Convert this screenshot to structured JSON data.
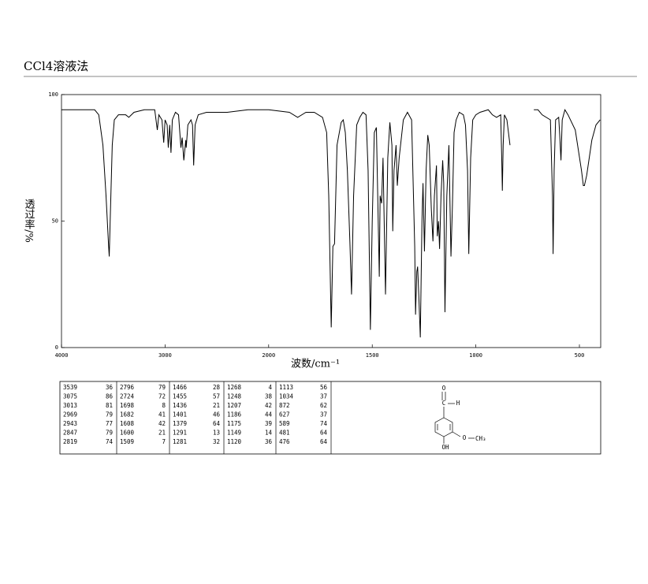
{
  "chart_data": {
    "type": "line",
    "title": "CCl4溶液法",
    "x_label": "波数/cm⁻¹",
    "y_label": "透过率/%",
    "xlim": [
      4000,
      400
    ],
    "xticks": [
      4000,
      3000,
      2000,
      1500,
      1000,
      500
    ],
    "ylim": [
      0,
      100
    ],
    "yticks": [
      0,
      50,
      100
    ],
    "x": [
      4000,
      3800,
      3680,
      3640,
      3600,
      3570,
      3545,
      3539,
      3530,
      3510,
      3490,
      3450,
      3380,
      3350,
      3300,
      3200,
      3100,
      3075,
      3060,
      3030,
      3013,
      3000,
      2980,
      2969,
      2955,
      2943,
      2930,
      2900,
      2870,
      2847,
      2835,
      2819,
      2800,
      2796,
      2780,
      2750,
      2735,
      2724,
      2710,
      2680,
      2600,
      2400,
      2200,
      2000,
      1900,
      1860,
      1820,
      1780,
      1740,
      1720,
      1710,
      1698,
      1690,
      1682,
      1670,
      1650,
      1640,
      1630,
      1620,
      1608,
      1600,
      1590,
      1575,
      1560,
      1545,
      1530,
      1520,
      1509,
      1500,
      1490,
      1480,
      1466,
      1462,
      1455,
      1448,
      1436,
      1425,
      1415,
      1405,
      1401,
      1395,
      1385,
      1379,
      1370,
      1350,
      1330,
      1310,
      1295,
      1291,
      1285,
      1281,
      1275,
      1268,
      1260,
      1255,
      1248,
      1240,
      1232,
      1225,
      1215,
      1207,
      1200,
      1190,
      1186,
      1180,
      1175,
      1168,
      1160,
      1155,
      1149,
      1140,
      1130,
      1120,
      1113,
      1105,
      1095,
      1080,
      1060,
      1050,
      1040,
      1034,
      1025,
      1015,
      1000,
      980,
      940,
      920,
      900,
      880,
      875,
      872,
      868,
      862,
      850,
      835,
      780,
      720,
      700,
      680,
      640,
      630,
      627,
      622,
      615,
      600,
      595,
      589,
      583,
      570,
      555,
      520,
      490,
      481,
      476,
      465,
      440,
      420,
      400
    ],
    "series": [
      {
        "color": "#000000",
        "values": [
          94,
          94,
          94,
          92,
          80,
          60,
          40,
          36,
          50,
          80,
          90,
          92,
          92,
          91,
          93,
          94,
          94,
          86,
          92,
          90,
          81,
          90,
          88,
          79,
          88,
          77,
          90,
          93,
          92,
          79,
          83,
          74,
          82,
          79,
          88,
          90,
          88,
          72,
          88,
          92,
          93,
          93,
          94,
          94,
          93,
          91,
          93,
          93,
          91,
          85,
          60,
          8,
          40,
          41,
          80,
          89,
          90,
          85,
          70,
          42,
          21,
          60,
          88,
          91,
          93,
          92,
          70,
          7,
          50,
          85,
          87,
          28,
          60,
          57,
          75,
          21,
          75,
          89,
          80,
          46,
          70,
          80,
          64,
          75,
          90,
          93,
          90,
          40,
          13,
          30,
          32,
          20,
          4,
          50,
          65,
          38,
          70,
          84,
          80,
          55,
          42,
          60,
          72,
          44,
          50,
          39,
          60,
          74,
          65,
          14,
          60,
          80,
          36,
          56,
          85,
          90,
          93,
          92,
          88,
          70,
          37,
          75,
          90,
          92,
          93,
          94,
          92,
          91,
          92,
          75,
          62,
          80,
          92,
          90,
          80,
          null,
          94,
          94,
          92,
          90,
          60,
          37,
          70,
          90,
          91,
          84,
          74,
          90,
          94,
          92,
          86,
          70,
          64,
          64,
          68,
          82,
          88,
          90
        ]
      }
    ]
  },
  "peak_table": {
    "rows": [
      [
        3539,
        36,
        2796,
        79,
        1466,
        28,
        1268,
        4,
        1113,
        56
      ],
      [
        3075,
        86,
        2724,
        72,
        1455,
        57,
        1248,
        38,
        1034,
        37
      ],
      [
        3013,
        81,
        1698,
        8,
        1436,
        21,
        1207,
        42,
        872,
        62
      ],
      [
        2969,
        79,
        1682,
        41,
        1401,
        46,
        1186,
        44,
        627,
        37
      ],
      [
        2943,
        77,
        1608,
        42,
        1379,
        64,
        1175,
        39,
        589,
        74
      ],
      [
        2847,
        79,
        1600,
        21,
        1291,
        13,
        1149,
        14,
        481,
        64
      ],
      [
        2819,
        74,
        1509,
        7,
        1281,
        32,
        1120,
        36,
        476,
        64
      ]
    ]
  },
  "structure": {
    "labels": [
      "O",
      "C",
      "H",
      "O",
      "CH₃",
      "OH"
    ]
  }
}
